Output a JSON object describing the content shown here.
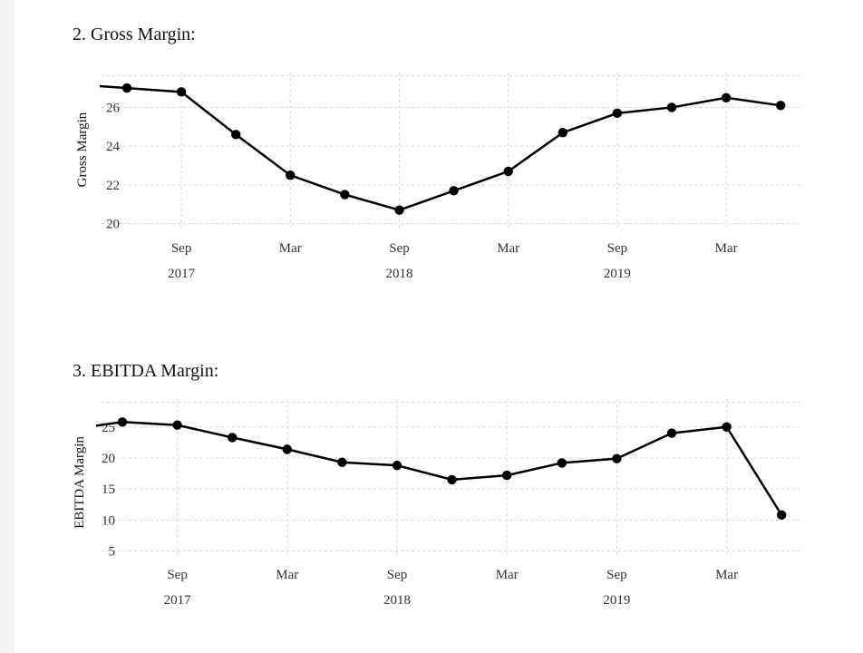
{
  "sections": [
    {
      "title": "2. Gross Margin:"
    },
    {
      "title": "3. EBITDA Margin:"
    }
  ],
  "chart_data": [
    {
      "type": "line",
      "title": "",
      "xlabel": "",
      "ylabel": "Gross Margin",
      "x": [
        "2017-06",
        "2017-09",
        "2017-12",
        "2018-03",
        "2018-06",
        "2018-09",
        "2018-12",
        "2019-03",
        "2019-06",
        "2019-09",
        "2019-12",
        "2020-03",
        "2020-06"
      ],
      "series": [
        {
          "values": [
            27.0,
            26.8,
            24.6,
            22.5,
            21.5,
            20.7,
            21.7,
            22.7,
            24.7,
            25.7,
            26.0,
            26.5,
            26.1
          ]
        }
      ],
      "line_start": 27.1,
      "yticks": [
        20,
        22,
        24,
        26
      ],
      "ylim": [
        19.7,
        27.8
      ],
      "xticks": [
        {
          "month": "Sep",
          "year": "2017"
        },
        {
          "month": "Mar",
          "year": ""
        },
        {
          "month": "Sep",
          "year": "2018"
        },
        {
          "month": "Mar",
          "year": ""
        },
        {
          "month": "Sep",
          "year": "2019"
        },
        {
          "month": "Mar",
          "year": ""
        }
      ],
      "grid": true,
      "line_color": "#000000",
      "grid_color": "#d8d8d8"
    },
    {
      "type": "line",
      "title": "",
      "xlabel": "",
      "ylabel": "EBITDA Margin",
      "x": [
        "2017-06",
        "2017-09",
        "2017-12",
        "2018-03",
        "2018-06",
        "2018-09",
        "2018-12",
        "2019-03",
        "2019-06",
        "2019-09",
        "2019-12",
        "2020-03",
        "2020-06"
      ],
      "series": [
        {
          "values": [
            25.8,
            25.3,
            23.3,
            21.4,
            19.3,
            18.8,
            16.5,
            17.2,
            19.2,
            19.9,
            24.0,
            25.0,
            10.8
          ]
        }
      ],
      "line_start": 25.2,
      "yticks": [
        5,
        10,
        15,
        20,
        25
      ],
      "ylim": [
        4.2,
        29.5
      ],
      "xticks": [
        {
          "month": "Sep",
          "year": "2017"
        },
        {
          "month": "Mar",
          "year": ""
        },
        {
          "month": "Sep",
          "year": "2018"
        },
        {
          "month": "Mar",
          "year": ""
        },
        {
          "month": "Sep",
          "year": "2019"
        },
        {
          "month": "Mar",
          "year": ""
        }
      ],
      "grid": true,
      "line_color": "#000000",
      "grid_color": "#d8d8d8"
    }
  ]
}
